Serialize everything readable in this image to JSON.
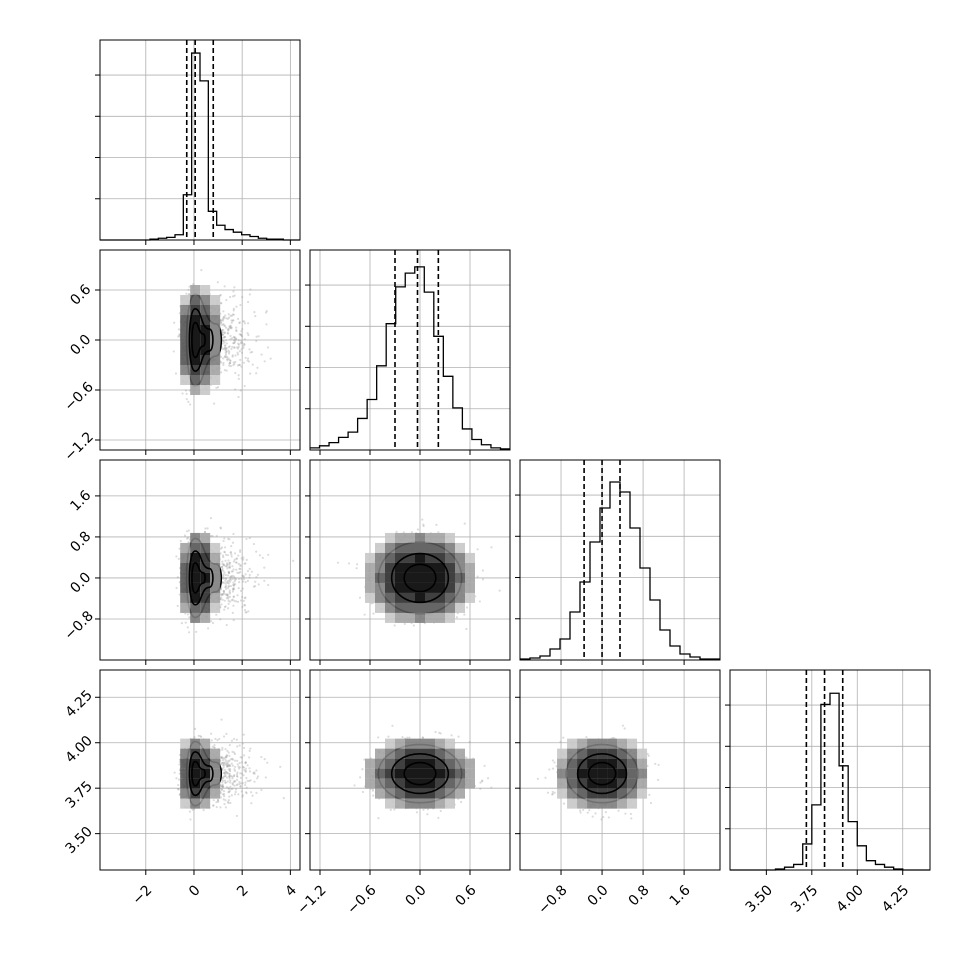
{
  "chart_data": {
    "type": "corner",
    "title": "",
    "parameters": [
      {
        "xlim": [
          -3.9,
          4.4
        ],
        "ylim": [
          -3.9,
          4.4
        ],
        "xticks": [
          -2,
          0,
          2,
          4
        ],
        "xtick_labels": [
          "−2",
          "0",
          "2",
          "4"
        ],
        "quantiles": [
          -0.3,
          0.05,
          0.8
        ],
        "hist_counts": [
          0,
          0,
          0,
          0,
          0,
          0,
          1,
          2,
          3,
          6,
          52,
          215,
          183,
          33,
          17,
          12,
          9,
          6,
          4,
          2,
          1,
          1,
          0,
          0
        ],
        "hist_ylim": [
          0,
          230
        ],
        "peak": 0.05,
        "kde": {
          "sd_left": 0.25,
          "sd_right": 1.1,
          "skew": true
        }
      },
      {
        "xlim": [
          -1.32,
          1.08
        ],
        "ylim": [
          -1.32,
          1.08
        ],
        "xticks": [
          -1.2,
          -0.6,
          0.0,
          0.6
        ],
        "xtick_labels": [
          "−1.2",
          "−0.6",
          "0.0",
          "0.6"
        ],
        "yticks": [
          -1.2,
          -0.6,
          0.0,
          0.6
        ],
        "ytick_labels": [
          "−1.2",
          "−0.6",
          "0.0",
          "0.6"
        ],
        "quantiles": [
          -0.3,
          -0.03,
          0.22
        ],
        "hist_counts": [
          2,
          4,
          7,
          12,
          17,
          30,
          48,
          80,
          120,
          155,
          168,
          174,
          150,
          108,
          70,
          40,
          20,
          10,
          5,
          2,
          1
        ],
        "hist_ylim": [
          0,
          190
        ],
        "peak": 0.0,
        "kde": {
          "sd": 0.25
        }
      },
      {
        "xlim": [
          -1.6,
          2.3
        ],
        "ylim": [
          -1.6,
          2.3
        ],
        "xticks": [
          -0.8,
          0.0,
          0.8,
          1.6
        ],
        "xtick_labels": [
          "−0.8",
          "0.0",
          "0.8",
          "1.6"
        ],
        "yticks": [
          -0.8,
          0.0,
          0.8,
          1.6
        ],
        "ytick_labels": [
          "−0.8",
          "0.0",
          "0.8",
          "1.6"
        ],
        "quantiles": [
          -0.35,
          0.0,
          0.35
        ],
        "hist_counts": [
          1,
          2,
          4,
          11,
          21,
          48,
          78,
          118,
          152,
          178,
          168,
          132,
          92,
          60,
          30,
          14,
          6,
          3,
          1,
          1
        ],
        "hist_ylim": [
          0,
          200
        ],
        "peak": 0.0,
        "kde": {
          "sd": 0.35
        }
      },
      {
        "xlim": [
          3.3,
          4.4
        ],
        "ylim": [
          3.3,
          4.4
        ],
        "xticks": [
          3.5,
          3.75,
          4.0,
          4.25
        ],
        "xtick_labels": [
          "3.50",
          "3.75",
          "4.00",
          "4.25"
        ],
        "yticks": [
          3.5,
          3.75,
          4.0,
          4.25
        ],
        "ytick_labels": [
          "3.50",
          "3.75",
          "4.00",
          "4.25"
        ],
        "quantiles": [
          3.72,
          3.82,
          3.92
        ],
        "hist_counts": [
          0,
          0,
          0,
          0,
          0,
          1,
          3,
          6,
          28,
          70,
          178,
          190,
          112,
          52,
          26,
          10,
          6,
          3,
          1,
          0,
          0,
          0
        ],
        "hist_ylim": [
          0,
          215
        ],
        "peak": 3.83,
        "kde": {
          "sd": 0.08
        }
      }
    ],
    "contour_levels": 3,
    "grid": true
  }
}
